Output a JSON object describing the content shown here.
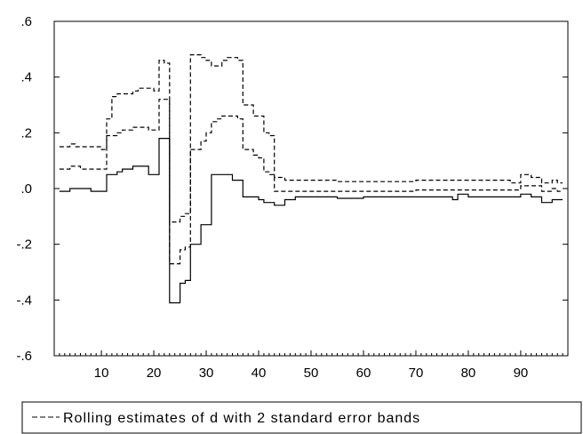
{
  "chart_data": {
    "type": "line",
    "title": "",
    "xlabel": "",
    "ylabel": "",
    "xlim": [
      1,
      99
    ],
    "ylim": [
      -0.6,
      0.6
    ],
    "x_ticks": [
      10,
      20,
      30,
      40,
      50,
      60,
      70,
      80,
      90
    ],
    "x_tick_labels": [
      "10",
      "20",
      "30",
      "40",
      "50",
      "60",
      "70",
      "80",
      "90"
    ],
    "y_ticks": [
      0.6,
      0.4,
      0.2,
      0.0,
      -0.2,
      -0.4,
      -0.6
    ],
    "y_tick_labels": [
      ".6",
      ".4",
      ".2",
      ".0",
      "-.2",
      "-.4",
      "-.6"
    ],
    "grid": false,
    "legend_position": "bottom",
    "legend_label": "Rolling estimates of d with 2 standard error bands",
    "colors": {
      "line": "#000000",
      "frame": "#000000",
      "background": "#ffffff"
    },
    "series": [
      {
        "role": "upper band",
        "style": "dashed",
        "points": [
          [
            2,
            0.15
          ],
          [
            3,
            0.15
          ],
          [
            4,
            0.16
          ],
          [
            5,
            0.15
          ],
          [
            6,
            0.15
          ],
          [
            7,
            0.15
          ],
          [
            8,
            0.15
          ],
          [
            9,
            0.15
          ],
          [
            10,
            0.14
          ],
          [
            11,
            0.25
          ],
          [
            12,
            0.33
          ],
          [
            13,
            0.34
          ],
          [
            14,
            0.34
          ],
          [
            15,
            0.34
          ],
          [
            16,
            0.35
          ],
          [
            17,
            0.36
          ],
          [
            18,
            0.36
          ],
          [
            19,
            0.36
          ],
          [
            20,
            0.35
          ],
          [
            21,
            0.46
          ],
          [
            22,
            0.45
          ],
          [
            23,
            -0.12
          ],
          [
            24,
            -0.12
          ],
          [
            25,
            -0.1
          ],
          [
            26,
            -0.09
          ],
          [
            27,
            0.48
          ],
          [
            28,
            0.48
          ],
          [
            29,
            0.47
          ],
          [
            30,
            0.46
          ],
          [
            31,
            0.44
          ],
          [
            32,
            0.44
          ],
          [
            33,
            0.46
          ],
          [
            34,
            0.47
          ],
          [
            35,
            0.47
          ],
          [
            36,
            0.46
          ],
          [
            37,
            0.3
          ],
          [
            38,
            0.3
          ],
          [
            39,
            0.26
          ],
          [
            40,
            0.26
          ],
          [
            41,
            0.2
          ],
          [
            42,
            0.19
          ],
          [
            43,
            0.04
          ],
          [
            44,
            0.04
          ],
          [
            45,
            0.03
          ],
          [
            46,
            0.03
          ],
          [
            47,
            0.03
          ],
          [
            48,
            0.03
          ],
          [
            49,
            0.03
          ],
          [
            50,
            0.03
          ],
          [
            55,
            0.025
          ],
          [
            60,
            0.025
          ],
          [
            65,
            0.025
          ],
          [
            70,
            0.03
          ],
          [
            75,
            0.03
          ],
          [
            80,
            0.03
          ],
          [
            85,
            0.03
          ],
          [
            88,
            0.02
          ],
          [
            89,
            0.02
          ],
          [
            90,
            0.05
          ],
          [
            91,
            0.05
          ],
          [
            92,
            0.04
          ],
          [
            93,
            0.04
          ],
          [
            94,
            0.02
          ],
          [
            95,
            0.02
          ],
          [
            96,
            0.03
          ],
          [
            97,
            0.02
          ],
          [
            98,
            0.02
          ]
        ]
      },
      {
        "role": "estimate",
        "style": "dashed",
        "points": [
          [
            2,
            0.07
          ],
          [
            3,
            0.07
          ],
          [
            4,
            0.08
          ],
          [
            5,
            0.08
          ],
          [
            6,
            0.07
          ],
          [
            7,
            0.07
          ],
          [
            8,
            0.07
          ],
          [
            9,
            0.07
          ],
          [
            10,
            0.07
          ],
          [
            11,
            0.19
          ],
          [
            12,
            0.19
          ],
          [
            13,
            0.2
          ],
          [
            14,
            0.21
          ],
          [
            15,
            0.21
          ],
          [
            16,
            0.22
          ],
          [
            17,
            0.22
          ],
          [
            18,
            0.22
          ],
          [
            19,
            0.21
          ],
          [
            20,
            0.21
          ],
          [
            21,
            0.32
          ],
          [
            22,
            0.32
          ],
          [
            23,
            -0.27
          ],
          [
            24,
            -0.27
          ],
          [
            25,
            -0.22
          ],
          [
            26,
            -0.21
          ],
          [
            27,
            0.14
          ],
          [
            28,
            0.14
          ],
          [
            29,
            0.17
          ],
          [
            30,
            0.2
          ],
          [
            31,
            0.24
          ],
          [
            32,
            0.25
          ],
          [
            33,
            0.26
          ],
          [
            34,
            0.26
          ],
          [
            35,
            0.26
          ],
          [
            36,
            0.25
          ],
          [
            37,
            0.14
          ],
          [
            38,
            0.14
          ],
          [
            39,
            0.12
          ],
          [
            40,
            0.11
          ],
          [
            41,
            0.06
          ],
          [
            42,
            0.05
          ],
          [
            43,
            -0.01
          ],
          [
            44,
            -0.01
          ],
          [
            45,
            -0.01
          ],
          [
            46,
            -0.01
          ],
          [
            47,
            -0.01
          ],
          [
            48,
            -0.01
          ],
          [
            49,
            -0.01
          ],
          [
            50,
            -0.01
          ],
          [
            55,
            -0.01
          ],
          [
            60,
            -0.01
          ],
          [
            65,
            -0.01
          ],
          [
            70,
            -0.005
          ],
          [
            75,
            -0.005
          ],
          [
            80,
            -0.005
          ],
          [
            85,
            -0.005
          ],
          [
            88,
            -0.005
          ],
          [
            89,
            -0.005
          ],
          [
            90,
            0.01
          ],
          [
            91,
            0.01
          ],
          [
            92,
            0.01
          ],
          [
            93,
            0.01
          ],
          [
            94,
            -0.01
          ],
          [
            95,
            -0.01
          ],
          [
            96,
            0.0
          ],
          [
            97,
            -0.01
          ],
          [
            98,
            -0.01
          ]
        ]
      },
      {
        "role": "lower band",
        "style": "solid",
        "points": [
          [
            2,
            -0.01
          ],
          [
            3,
            -0.01
          ],
          [
            4,
            0.0
          ],
          [
            5,
            0.0
          ],
          [
            6,
            0.0
          ],
          [
            7,
            0.0
          ],
          [
            8,
            -0.01
          ],
          [
            9,
            -0.01
          ],
          [
            10,
            -0.01
          ],
          [
            11,
            0.05
          ],
          [
            12,
            0.05
          ],
          [
            13,
            0.06
          ],
          [
            14,
            0.07
          ],
          [
            15,
            0.07
          ],
          [
            16,
            0.08
          ],
          [
            17,
            0.08
          ],
          [
            18,
            0.08
          ],
          [
            19,
            0.05
          ],
          [
            20,
            0.05
          ],
          [
            21,
            0.18
          ],
          [
            22,
            0.18
          ],
          [
            23,
            -0.41
          ],
          [
            24,
            -0.41
          ],
          [
            25,
            -0.34
          ],
          [
            26,
            -0.33
          ],
          [
            27,
            -0.2
          ],
          [
            28,
            -0.2
          ],
          [
            29,
            -0.13
          ],
          [
            30,
            -0.13
          ],
          [
            31,
            0.05
          ],
          [
            32,
            0.05
          ],
          [
            33,
            0.05
          ],
          [
            34,
            0.05
          ],
          [
            35,
            0.03
          ],
          [
            36,
            0.03
          ],
          [
            37,
            -0.03
          ],
          [
            38,
            -0.03
          ],
          [
            39,
            -0.03
          ],
          [
            40,
            -0.04
          ],
          [
            41,
            -0.05
          ],
          [
            42,
            -0.05
          ],
          [
            43,
            -0.06
          ],
          [
            44,
            -0.06
          ],
          [
            45,
            -0.04
          ],
          [
            46,
            -0.04
          ],
          [
            47,
            -0.03
          ],
          [
            48,
            -0.03
          ],
          [
            49,
            -0.03
          ],
          [
            50,
            -0.03
          ],
          [
            55,
            -0.035
          ],
          [
            60,
            -0.03
          ],
          [
            65,
            -0.03
          ],
          [
            70,
            -0.03
          ],
          [
            75,
            -0.03
          ],
          [
            77,
            -0.04
          ],
          [
            78,
            -0.02
          ],
          [
            80,
            -0.03
          ],
          [
            85,
            -0.03
          ],
          [
            88,
            -0.03
          ],
          [
            89,
            -0.03
          ],
          [
            90,
            -0.02
          ],
          [
            91,
            -0.02
          ],
          [
            92,
            -0.03
          ],
          [
            93,
            -0.03
          ],
          [
            94,
            -0.05
          ],
          [
            95,
            -0.05
          ],
          [
            96,
            -0.04
          ],
          [
            97,
            -0.04
          ],
          [
            98,
            -0.04
          ]
        ]
      }
    ]
  }
}
